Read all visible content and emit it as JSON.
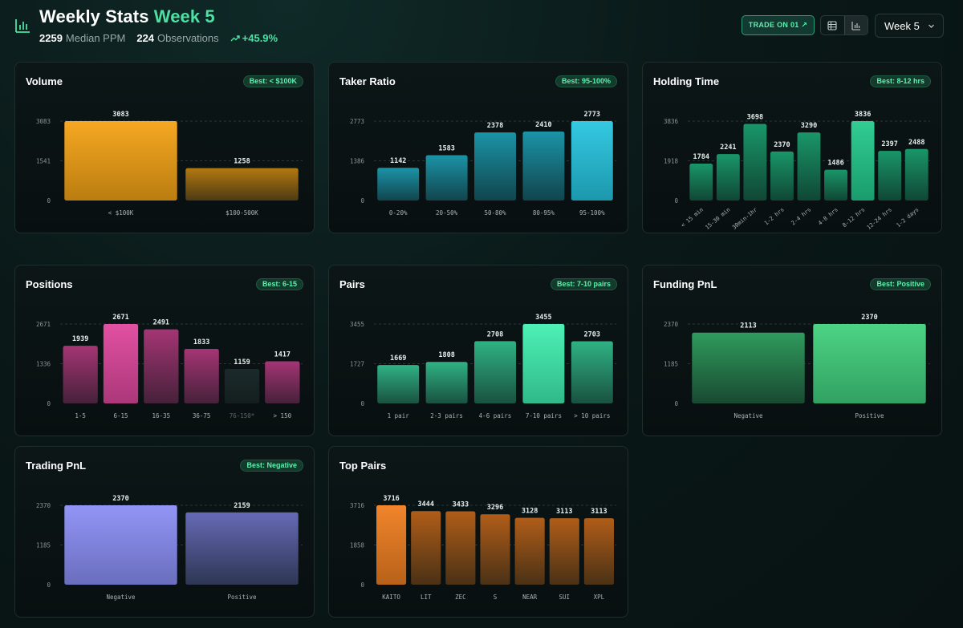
{
  "header": {
    "title": "Weekly Stats",
    "week_label": "Week 5",
    "median_ppm_value": "2259",
    "median_ppm_label": "Median PPM",
    "observations_value": "224",
    "observations_label": "Observations",
    "change": "+45.9%",
    "trade_button": "TRADE ON 01 ↗",
    "week_select": "Week 5",
    "icons": {
      "logo": "bar-chart-icon",
      "table_view": "table-icon",
      "chart_view": "bar-chart-icon",
      "dropdown": "chevron-down-icon",
      "trend": "trending-up-icon"
    }
  },
  "colors": {
    "accent": "#4ee0a2",
    "volume": "#f5a00f",
    "taker": "#22c4e0",
    "holding": "#1fc98a",
    "positions": "#e0429a",
    "pairs": "#3ef0b0",
    "funding": "#3ed07a",
    "trading": "#8a8cf5",
    "top_pairs": "#f07a1a"
  },
  "chart_data": [
    {
      "id": "volume",
      "type": "bar",
      "title": "Volume",
      "badge": "Best: < $100K",
      "categories": [
        "< $100K",
        "$100-500K"
      ],
      "values": [
        3083,
        1258
      ],
      "yticks": [
        "3083",
        "1541",
        "0"
      ],
      "ylim": [
        0,
        3083
      ],
      "best_index": 0
    },
    {
      "id": "taker",
      "type": "bar",
      "title": "Taker Ratio",
      "badge": "Best: 95-100%",
      "categories": [
        "0-20%",
        "20-50%",
        "50-80%",
        "80-95%",
        "95-100%"
      ],
      "values": [
        1142,
        1583,
        2378,
        2410,
        2773
      ],
      "yticks": [
        "2773",
        "1386",
        "0"
      ],
      "ylim": [
        0,
        2773
      ],
      "best_index": 4
    },
    {
      "id": "holding",
      "type": "bar",
      "title": "Holding Time",
      "badge": "Best: 8-12 hrs",
      "categories": [
        "< 15 min",
        "15-30 min",
        "30min-1hr",
        "1-2 hrs",
        "2-4 hrs",
        "4-8 hrs",
        "8-12 hrs",
        "12-24 hrs",
        "1-2 days"
      ],
      "values": [
        1784,
        2241,
        3698,
        2370,
        3290,
        1486,
        3836,
        2397,
        2488
      ],
      "yticks": [
        "3836",
        "1918",
        "0"
      ],
      "ylim": [
        0,
        3836
      ],
      "best_index": 6,
      "rotate_labels": true
    },
    {
      "id": "positions",
      "type": "bar",
      "title": "Positions",
      "badge": "Best: 6-15",
      "categories": [
        "1-5",
        "6-15",
        "16-35",
        "36-75",
        "76-150*",
        "> 150"
      ],
      "values": [
        1939,
        2671,
        2491,
        1833,
        1159,
        1417
      ],
      "yticks": [
        "2671",
        "1336",
        "0"
      ],
      "ylim": [
        0,
        2671
      ],
      "best_index": 1,
      "muted_index": 4
    },
    {
      "id": "pairs",
      "type": "bar",
      "title": "Pairs",
      "badge": "Best: 7-10 pairs",
      "categories": [
        "1 pair",
        "2-3 pairs",
        "4-6 pairs",
        "7-10 pairs",
        "> 10 pairs"
      ],
      "values": [
        1669,
        1808,
        2708,
        3455,
        2703
      ],
      "yticks": [
        "3455",
        "1727",
        "0"
      ],
      "ylim": [
        0,
        3455
      ],
      "best_index": 3
    },
    {
      "id": "funding",
      "type": "bar",
      "title": "Funding PnL",
      "badge": "Best: Positive",
      "categories": [
        "Negative",
        "Positive"
      ],
      "values": [
        2113,
        2370
      ],
      "yticks": [
        "2370",
        "1185",
        "0"
      ],
      "ylim": [
        0,
        2370
      ],
      "best_index": 1
    },
    {
      "id": "trading",
      "type": "bar",
      "title": "Trading PnL",
      "badge": "Best: Negative",
      "categories": [
        "Negative",
        "Positive"
      ],
      "values": [
        2370,
        2159
      ],
      "yticks": [
        "2370",
        "1185",
        "0"
      ],
      "ylim": [
        0,
        2370
      ],
      "best_index": 0
    },
    {
      "id": "top_pairs",
      "type": "bar",
      "title": "Top Pairs",
      "badge": "",
      "categories": [
        "KAITO",
        "LIT",
        "ZEC",
        "S",
        "NEAR",
        "SUI",
        "XPL"
      ],
      "values": [
        3716,
        3444,
        3433,
        3296,
        3128,
        3113,
        3113
      ],
      "yticks": [
        "3716",
        "1858",
        "0"
      ],
      "ylim": [
        0,
        3716
      ],
      "best_index": 0
    }
  ]
}
